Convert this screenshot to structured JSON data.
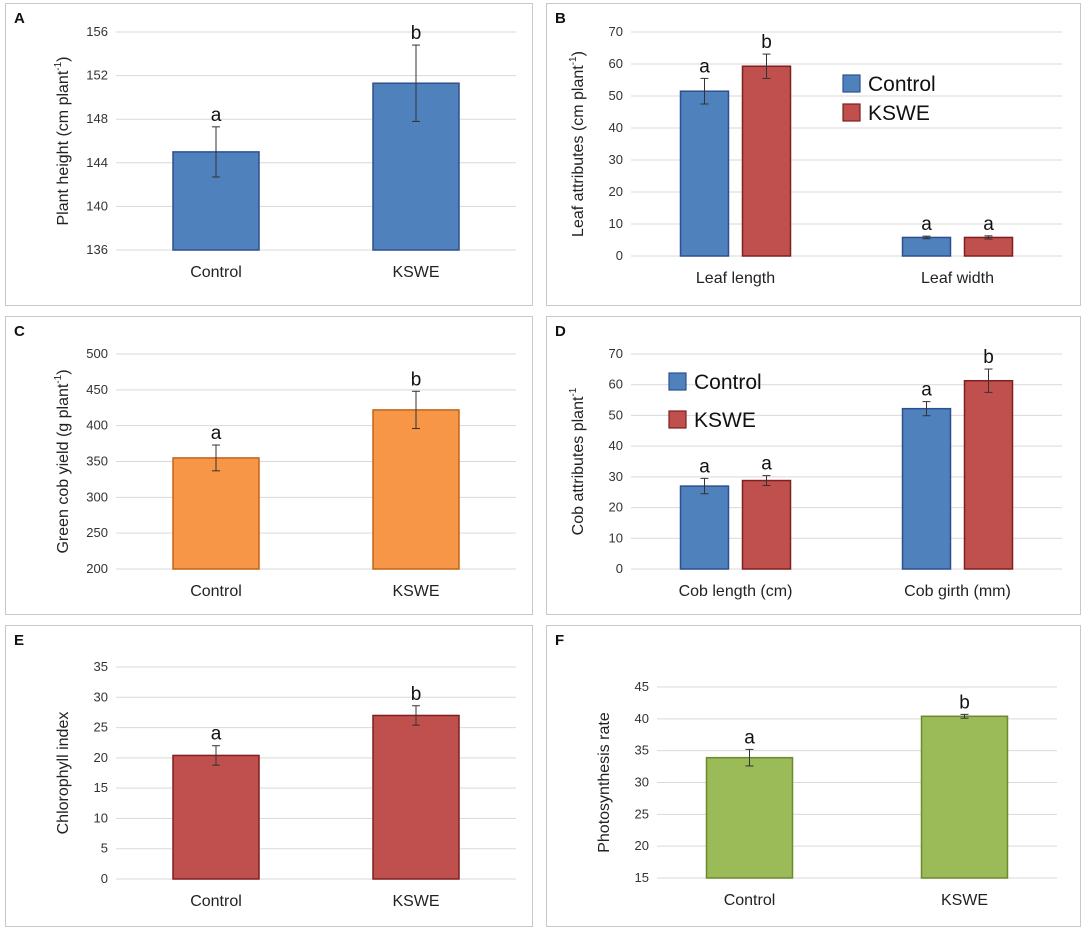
{
  "chart_data": [
    {
      "panel": "A",
      "type": "bar",
      "ylabel": "Plant height (cm plant",
      "ylabel_sup": "-1",
      "ylabel_tail": ")",
      "categories": [
        "Control",
        "KSWE"
      ],
      "series": [
        {
          "name": "",
          "color": "#4f81bd",
          "stroke": "#2f4f8f",
          "values": [
            145.0,
            151.3
          ],
          "errors": [
            2.3,
            3.5
          ],
          "letters": [
            "a",
            "b"
          ]
        }
      ],
      "ylim": [
        136,
        156
      ],
      "yticks": [
        136,
        140,
        144,
        148,
        152,
        156
      ],
      "legend": null
    },
    {
      "panel": "B",
      "type": "bar",
      "ylabel": "Leaf attributes (cm plant",
      "ylabel_sup": "-1",
      "ylabel_tail": ")",
      "categories": [
        "Leaf length",
        "Leaf width"
      ],
      "series": [
        {
          "name": "Control",
          "color": "#4f81bd",
          "stroke": "#2f4f8f",
          "values": [
            51.5,
            5.8
          ],
          "errors": [
            4.0,
            0.4
          ],
          "letters": [
            "a",
            "a"
          ]
        },
        {
          "name": "KSWE",
          "color": "#c0504d",
          "stroke": "#7f1f1f",
          "values": [
            59.3,
            5.8
          ],
          "errors": [
            3.8,
            0.5
          ],
          "letters": [
            "b",
            "a"
          ]
        }
      ],
      "ylim": [
        0,
        70
      ],
      "yticks": [
        0,
        10,
        20,
        30,
        40,
        50,
        60,
        70
      ],
      "legend": "top-right"
    },
    {
      "panel": "C",
      "type": "bar",
      "ylabel": "Green cob yield (g plant",
      "ylabel_sup": "-1",
      "ylabel_tail": ")",
      "categories": [
        "Control",
        "KSWE"
      ],
      "series": [
        {
          "name": "",
          "color": "#f79646",
          "stroke": "#c0651a",
          "values": [
            355,
            422
          ],
          "errors": [
            18,
            26
          ],
          "letters": [
            "a",
            "b"
          ]
        }
      ],
      "ylim": [
        200,
        500
      ],
      "yticks": [
        200,
        250,
        300,
        350,
        400,
        450,
        500
      ],
      "legend": null
    },
    {
      "panel": "D",
      "type": "bar",
      "ylabel": "Cob attributes plant",
      "ylabel_sup": "-1",
      "ylabel_tail": "",
      "categories": [
        "Cob length (cm)",
        "Cob girth (mm)"
      ],
      "series": [
        {
          "name": "Control",
          "color": "#4f81bd",
          "stroke": "#2f4f8f",
          "values": [
            27.0,
            52.2
          ],
          "errors": [
            2.5,
            2.3
          ],
          "letters": [
            "a",
            "a"
          ]
        },
        {
          "name": "KSWE",
          "color": "#c0504d",
          "stroke": "#7f1f1f",
          "values": [
            28.8,
            61.3
          ],
          "errors": [
            1.6,
            3.8
          ],
          "letters": [
            "a",
            "b"
          ]
        }
      ],
      "ylim": [
        0,
        70
      ],
      "yticks": [
        0,
        10,
        20,
        30,
        40,
        50,
        60,
        70
      ],
      "legend": "top-left"
    },
    {
      "panel": "E",
      "type": "bar",
      "ylabel": "Chlorophyll index",
      "ylabel_sup": "",
      "ylabel_tail": "",
      "categories": [
        "Control",
        "KSWE"
      ],
      "series": [
        {
          "name": "",
          "color": "#c0504d",
          "stroke": "#7f1f1f",
          "values": [
            20.4,
            27.0
          ],
          "errors": [
            1.6,
            1.6
          ],
          "letters": [
            "a",
            "b"
          ]
        }
      ],
      "ylim": [
        0,
        35
      ],
      "yticks": [
        0,
        5,
        10,
        15,
        20,
        25,
        30,
        35
      ],
      "legend": null
    },
    {
      "panel": "F",
      "type": "bar",
      "ylabel": "Photosynthesis rate",
      "ylabel_sup": "",
      "ylabel_tail": "",
      "categories": [
        "Control",
        "KSWE"
      ],
      "series": [
        {
          "name": "",
          "color": "#9bbb59",
          "stroke": "#6a8a2c",
          "values": [
            33.9,
            40.4
          ],
          "errors": [
            1.3,
            0.3
          ],
          "letters": [
            "a",
            "b"
          ]
        }
      ],
      "ylim": [
        15,
        45
      ],
      "yticks": [
        15,
        20,
        25,
        30,
        35,
        40,
        45
      ],
      "legend": null
    }
  ]
}
